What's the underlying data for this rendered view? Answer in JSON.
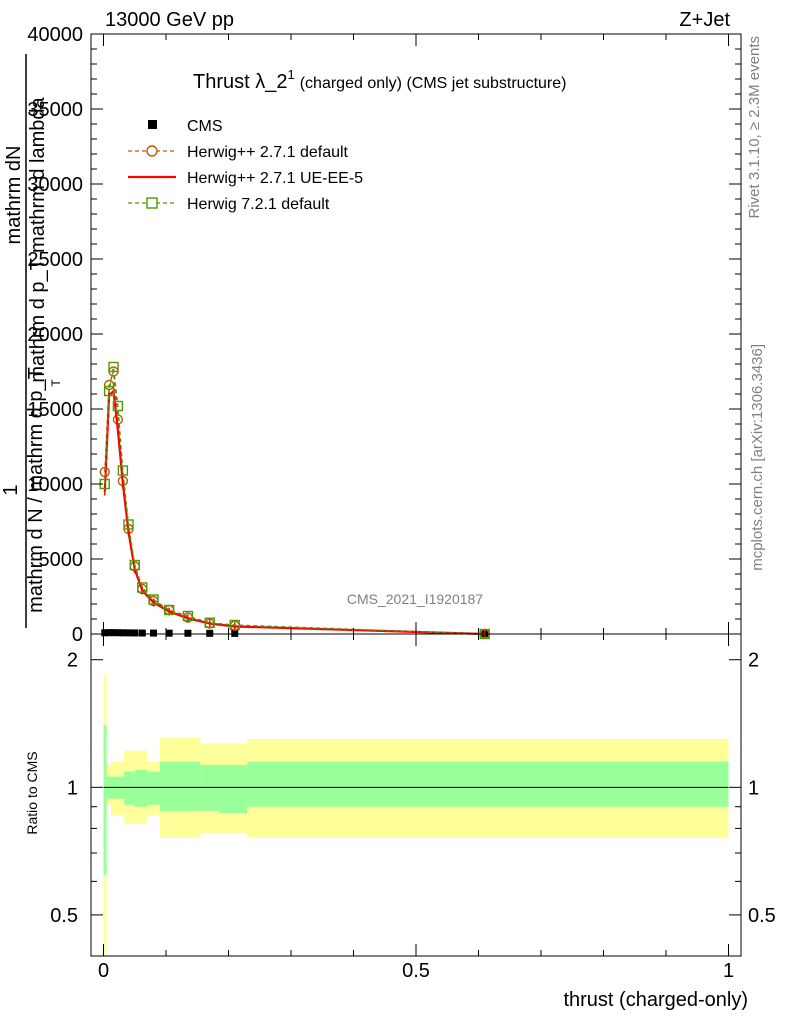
{
  "header": {
    "left": "13000 GeV pp",
    "right": "Z+Jet"
  },
  "side": {
    "rivet": "Rivet 3.1.10, ≥ 2.3M events",
    "mcplots": "mcplots.cern.ch [arXiv:1306.3436]"
  },
  "watermark": "CMS_2021_I1920187",
  "ratio_label": "Ratio to CMS",
  "chart_data": [
    {
      "type": "line",
      "title": "Thrust λ_2",
      "title_sup": "1",
      "subtitle": "(charged only) (CMS jet substructure)",
      "xlabel": "thrust (charged-only)",
      "ylabel": {
        "num_one": "1",
        "num": "mathrm dN",
        "den1": "mathrm d p_T mathrm d lambda",
        "den2": "mathrm d N / mathrm d p_T",
        "sub": "T"
      },
      "xlim": [
        -0.02,
        1.02
      ],
      "ylim": [
        0,
        40000
      ],
      "yticks": [
        0,
        5000,
        10000,
        15000,
        20000,
        25000,
        30000,
        35000,
        40000
      ],
      "ytick_labels": [
        "0",
        "5000",
        "10000",
        "15000",
        "20000",
        "25000",
        "30000",
        "35000",
        "40000"
      ],
      "xticks": [
        0,
        0.5,
        1
      ],
      "xtick_labels": [
        "0",
        "0.5",
        "1"
      ],
      "legend_position": "top-left",
      "series": [
        {
          "name": "CMS",
          "style": "data",
          "color": "#000000",
          "x": [
            0.002,
            0.009,
            0.016,
            0.023,
            0.031,
            0.04,
            0.05,
            0.062,
            0.08,
            0.105,
            0.135,
            0.17,
            0.21,
            0.61
          ],
          "y": [
            80,
            90,
            90,
            85,
            80,
            75,
            70,
            65,
            60,
            55,
            50,
            45,
            40,
            20
          ]
        },
        {
          "name": "Herwig++ 2.7.1 default",
          "style": "dashed-circle",
          "color": "#b45f06",
          "x": [
            0.002,
            0.009,
            0.016,
            0.023,
            0.031,
            0.04,
            0.05,
            0.062,
            0.08,
            0.105,
            0.135,
            0.17,
            0.21,
            0.61
          ],
          "y": [
            10800,
            16600,
            17500,
            14300,
            10200,
            7000,
            4500,
            3000,
            2200,
            1600,
            1100,
            700,
            550,
            0
          ]
        },
        {
          "name": "Herwig++ 2.7.1 UE-EE-5",
          "style": "solid",
          "color": "#ff0000",
          "x": [
            0.002,
            0.009,
            0.016,
            0.023,
            0.031,
            0.04,
            0.05,
            0.062,
            0.08,
            0.105,
            0.135,
            0.17,
            0.21,
            0.61
          ],
          "y": [
            9500,
            15900,
            16200,
            13600,
            10000,
            6800,
            4300,
            2900,
            2100,
            1500,
            1050,
            700,
            500,
            0
          ]
        },
        {
          "name": "Herwig 7.2.1 default",
          "style": "dashed-square",
          "color": "#4e9a06",
          "x": [
            0.002,
            0.009,
            0.016,
            0.023,
            0.031,
            0.04,
            0.05,
            0.062,
            0.08,
            0.105,
            0.135,
            0.17,
            0.21,
            0.61
          ],
          "y": [
            10000,
            16200,
            17800,
            15200,
            10900,
            7300,
            4600,
            3100,
            2300,
            1600,
            1200,
            750,
            600,
            0
          ]
        }
      ]
    },
    {
      "type": "area",
      "ylabel": "Ratio to CMS",
      "xlabel": "thrust (charged-only)",
      "xlim": [
        -0.02,
        1.02
      ],
      "ylim": [
        0.4,
        2.3
      ],
      "yscale": "log",
      "yticks": [
        0.5,
        1,
        2
      ],
      "ytick_labels": [
        "0.5",
        "1",
        "2"
      ],
      "xticks": [
        0,
        0.5,
        1
      ],
      "xtick_labels": [
        "0",
        "0.5",
        "1"
      ],
      "reference_line": 1,
      "bins": [
        0,
        0.005,
        0.012,
        0.033,
        0.05,
        0.07,
        0.09,
        0.12,
        0.155,
        0.185,
        0.23,
        1.0
      ],
      "green_band": {
        "color": "#99ff99",
        "low": [
          0.62,
          0.94,
          0.94,
          0.91,
          0.9,
          0.91,
          0.88,
          0.88,
          0.88,
          0.87,
          0.9
        ],
        "high": [
          1.4,
          1.06,
          1.06,
          1.09,
          1.1,
          1.09,
          1.15,
          1.15,
          1.13,
          1.13,
          1.15
        ]
      },
      "yellow_band": {
        "color": "#ffff99",
        "low": [
          0.4,
          0.91,
          0.86,
          0.82,
          0.82,
          0.86,
          0.76,
          0.76,
          0.78,
          0.78,
          0.76
        ],
        "high": [
          1.85,
          1.13,
          1.15,
          1.22,
          1.22,
          1.15,
          1.31,
          1.31,
          1.27,
          1.27,
          1.3
        ]
      }
    }
  ]
}
